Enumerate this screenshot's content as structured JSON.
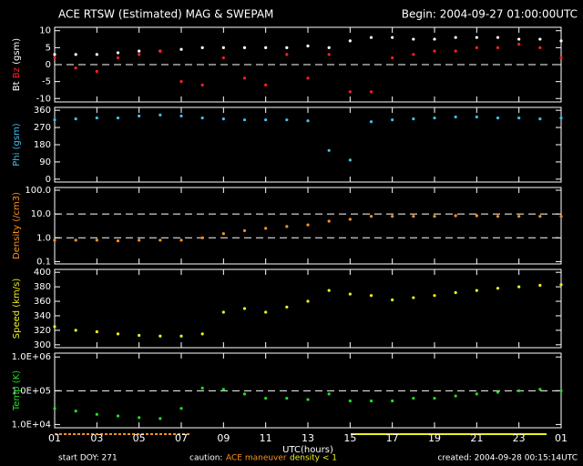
{
  "header": {
    "title": "ACE RTSW (Estimated) MAG & SWEPAM",
    "begin": "Begin: 2004-09-27 01:00:00UTC"
  },
  "chart_data": [
    {
      "type": "scatter",
      "ylabel": "(gsm)",
      "xlim": [
        0,
        24
      ],
      "xticks": [
        0,
        2,
        4,
        6,
        8,
        10,
        12,
        14,
        16,
        18,
        20,
        22,
        24
      ],
      "ylim": [
        -11,
        11
      ],
      "yticks": [
        -10,
        -5,
        0,
        5,
        10
      ],
      "reference_lines": [
        0
      ],
      "x": [
        0,
        1,
        2,
        3,
        4,
        5,
        6,
        7,
        8,
        9,
        10,
        11,
        12,
        13,
        14,
        15,
        16,
        17,
        18,
        19,
        20,
        21,
        22,
        23,
        24
      ],
      "series": [
        {
          "name": "Bt",
          "color": "#ffffff",
          "values": [
            3,
            3,
            3,
            3.5,
            4,
            4,
            4.5,
            5,
            5,
            5,
            5,
            5,
            5.5,
            5,
            7,
            8,
            8,
            7.5,
            7.5,
            8,
            8,
            8,
            7.5,
            7.5,
            7
          ]
        },
        {
          "name": "Bz",
          "color": "#ff2020",
          "values": [
            2,
            -1,
            -2,
            2,
            3,
            4,
            -5,
            -6,
            2,
            -4,
            -6,
            3,
            -4,
            3,
            -8,
            -8,
            2,
            3,
            4,
            4,
            5,
            5,
            6,
            5,
            2
          ]
        }
      ]
    },
    {
      "type": "scatter",
      "ylabel": "(gsm)",
      "xlim": [
        0,
        24
      ],
      "xticks": [
        0,
        2,
        4,
        6,
        8,
        10,
        12,
        14,
        16,
        18,
        20,
        22,
        24
      ],
      "ylim": [
        -15,
        375
      ],
      "yticks": [
        0,
        90,
        180,
        270,
        360
      ],
      "x": [
        0,
        1,
        2,
        3,
        4,
        5,
        6,
        7,
        8,
        9,
        10,
        11,
        12,
        13,
        14,
        15,
        16,
        17,
        18,
        19,
        20,
        21,
        22,
        23,
        24
      ],
      "series": [
        {
          "name": "Phi",
          "color": "#40c0f0",
          "values": [
            310,
            315,
            320,
            320,
            330,
            335,
            330,
            320,
            315,
            310,
            310,
            310,
            305,
            150,
            100,
            300,
            310,
            315,
            320,
            325,
            325,
            320,
            320,
            315,
            320
          ]
        }
      ]
    },
    {
      "type": "scatter",
      "ylabel": "(/cm3)",
      "log": true,
      "xlim": [
        0,
        24
      ],
      "xticks": [
        0,
        2,
        4,
        6,
        8,
        10,
        12,
        14,
        16,
        18,
        20,
        22,
        24
      ],
      "ylim": [
        0.08,
        130
      ],
      "yticks": [
        0.1,
        {
          "value": 1,
          "label": "1.0"
        },
        {
          "value": 10,
          "label": "10.0"
        },
        {
          "value": 100,
          "label": "100.0"
        }
      ],
      "reference_lines": [
        1,
        10
      ],
      "x": [
        0,
        1,
        2,
        3,
        4,
        5,
        6,
        7,
        8,
        9,
        10,
        11,
        12,
        13,
        14,
        15,
        16,
        17,
        18,
        19,
        20,
        21,
        22,
        23,
        24
      ],
      "series": [
        {
          "name": "Density",
          "color": "#ff9020",
          "values": [
            0.8,
            0.8,
            0.8,
            0.75,
            0.8,
            0.8,
            0.8,
            1.0,
            1.5,
            2,
            2.5,
            3,
            3.5,
            5,
            6,
            8,
            8,
            8,
            8,
            8.5,
            8.5,
            8,
            8,
            8,
            8
          ]
        }
      ]
    },
    {
      "type": "scatter",
      "ylabel": "(km/s)",
      "xlim": [
        0,
        24
      ],
      "xticks": [
        0,
        2,
        4,
        6,
        8,
        10,
        12,
        14,
        16,
        18,
        20,
        22,
        24
      ],
      "ylim": [
        296,
        404
      ],
      "yticks": [
        300,
        320,
        340,
        360,
        380,
        400
      ],
      "x": [
        0,
        1,
        2,
        3,
        4,
        5,
        6,
        7,
        8,
        9,
        10,
        11,
        12,
        13,
        14,
        15,
        16,
        17,
        18,
        19,
        20,
        21,
        22,
        23,
        24
      ],
      "series": [
        {
          "name": "Speed",
          "color": "#f0f020",
          "values": [
            325,
            320,
            318,
            315,
            313,
            312,
            312,
            315,
            345,
            350,
            345,
            352,
            360,
            375,
            370,
            368,
            362,
            365,
            368,
            372,
            375,
            378,
            380,
            382,
            383
          ]
        }
      ]
    },
    {
      "type": "scatter",
      "ylabel": "(K)",
      "log": true,
      "xlim": [
        0,
        24
      ],
      "xticks": [
        {
          "value": 0,
          "label": "01"
        },
        {
          "value": 2,
          "label": "03"
        },
        {
          "value": 4,
          "label": "05"
        },
        {
          "value": 6,
          "label": "07"
        },
        {
          "value": 8,
          "label": "09"
        },
        {
          "value": 10,
          "label": "11"
        },
        {
          "value": 12,
          "label": "13"
        },
        {
          "value": 14,
          "label": "15"
        },
        {
          "value": 16,
          "label": "17"
        },
        {
          "value": 18,
          "label": "19"
        },
        {
          "value": 20,
          "label": "21"
        },
        {
          "value": 22,
          "label": "23"
        },
        {
          "value": 24,
          "label": "01"
        }
      ],
      "xlabel": "UTC(hours)",
      "ylim": [
        8000,
        1300000
      ],
      "yticks": [
        {
          "value": 10000,
          "label": "1.0E+04"
        },
        {
          "value": 100000,
          "label": "1.0E+05"
        },
        {
          "value": 1000000,
          "label": "1.0E+06"
        }
      ],
      "reference_lines": [
        100000
      ],
      "x": [
        0,
        1,
        2,
        3,
        4,
        5,
        6,
        7,
        8,
        9,
        10,
        11,
        12,
        13,
        14,
        15,
        16,
        17,
        18,
        19,
        20,
        21,
        22,
        23,
        24
      ],
      "series": [
        {
          "name": "Temp",
          "color": "#20e020",
          "values": [
            30000,
            25000,
            20000,
            18000,
            16000,
            15000,
            30000,
            120000,
            110000,
            80000,
            60000,
            60000,
            55000,
            80000,
            50000,
            50000,
            50000,
            60000,
            60000,
            70000,
            80000,
            90000,
            100000,
            110000,
            100000
          ]
        }
      ]
    }
  ],
  "footer": {
    "start": "start DOY: 271",
    "caution": "caution:",
    "maneuver": "ACE maneuver",
    "density": "density < 1",
    "created": "created: 2004-09-28 00:15:14UTC"
  }
}
